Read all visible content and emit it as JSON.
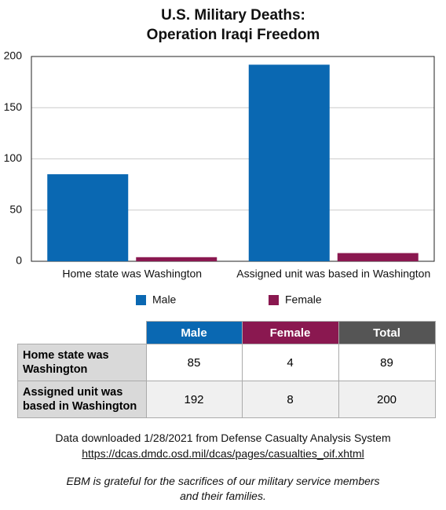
{
  "chart_data": {
    "type": "bar",
    "title": [
      "U.S. Military Deaths:",
      "Operation Iraqi Freedom"
    ],
    "categories": [
      "Home state was Washington",
      "Assigned unit was based in Washington"
    ],
    "series": [
      {
        "name": "Male",
        "color": "#0a68b2",
        "values": [
          85,
          192
        ]
      },
      {
        "name": "Female",
        "color": "#8a1850",
        "values": [
          4,
          8
        ]
      }
    ],
    "ylim": [
      0,
      200
    ],
    "yticks": [
      0,
      50,
      100,
      150,
      200
    ],
    "grid": true
  },
  "table": {
    "columns": [
      "Male",
      "Female",
      "Total"
    ],
    "rows": [
      [
        "Home state was Washington",
        "85",
        "4",
        "89"
      ],
      [
        "Assigned unit was based in Washington",
        "192",
        "8",
        "200"
      ]
    ]
  },
  "notes": {
    "source": "Data downloaded 1/28/2021 from Defense Casualty Analysis System",
    "link": "https://dcas.dmdc.osd.mil/dcas/pages/casualties_oif.xhtml",
    "gratitude": [
      "EBM is grateful for the sacrifices of our military service members",
      "and their families."
    ]
  }
}
